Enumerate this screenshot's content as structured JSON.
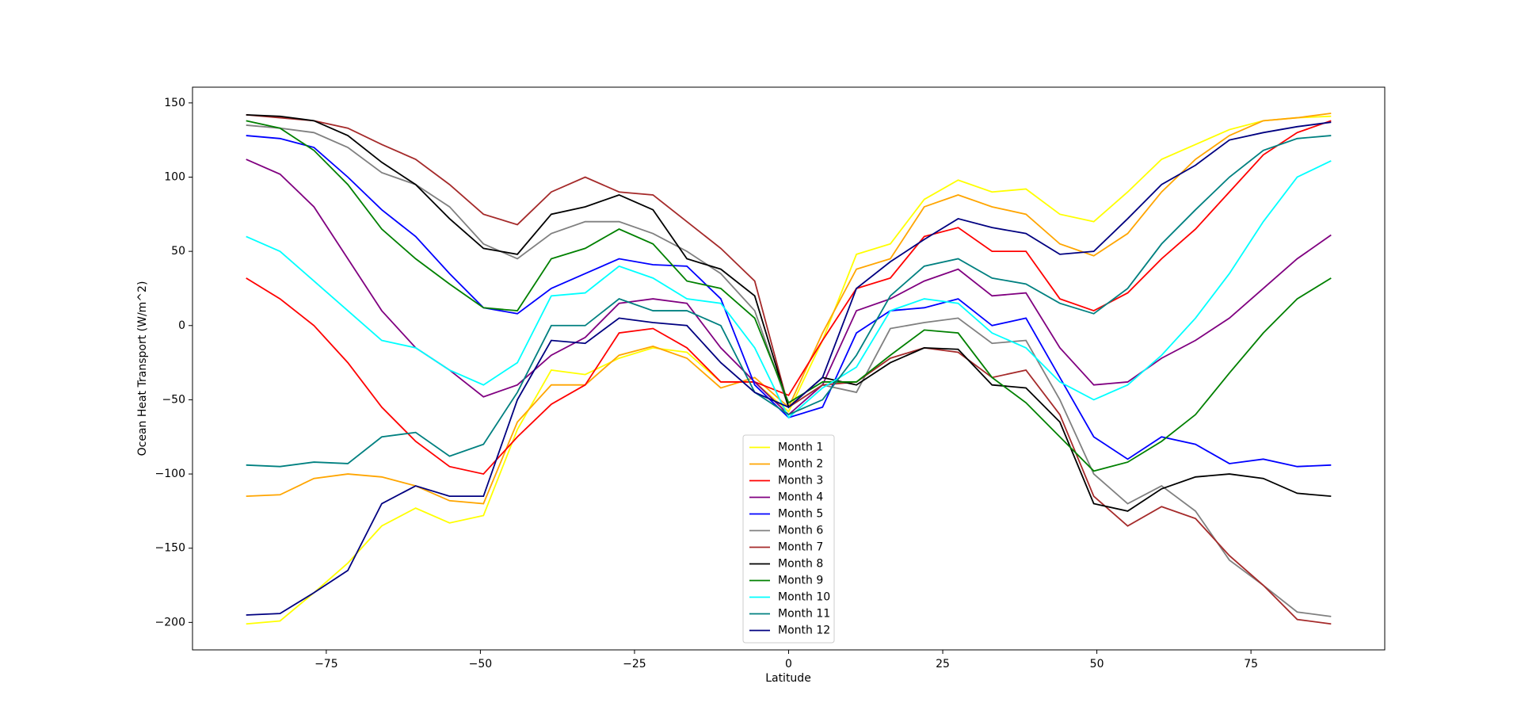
{
  "chart_data": {
    "type": "line",
    "xlabel": "Latitude",
    "ylabel": "Ocean Heat Transport (W/m^2)",
    "x": [
      -88,
      -82.5,
      -77,
      -71.5,
      -66,
      -60.5,
      -55,
      -49.5,
      -44,
      -38.5,
      -33,
      -27.5,
      -22,
      -16.5,
      -11,
      -5.5,
      0,
      5.5,
      11,
      16.5,
      22,
      27.5,
      33,
      38.5,
      44,
      49.5,
      55,
      60.5,
      66,
      71.5,
      77,
      82.5,
      88
    ],
    "xlim": [
      -96.7,
      96.7
    ],
    "xticks": [
      {
        "value": -75,
        "label": "−75"
      },
      {
        "value": -50,
        "label": "−50"
      },
      {
        "value": -25,
        "label": "−25"
      },
      0,
      25,
      50,
      75
    ],
    "ylim": [
      -218.5,
      160.6
    ],
    "yticks": [
      {
        "value": -200,
        "label": "−200"
      },
      {
        "value": -150,
        "label": "−150"
      },
      {
        "value": -100,
        "label": "−100"
      },
      {
        "value": -50,
        "label": "−50"
      },
      0,
      50,
      100,
      150
    ],
    "legend": "lower center",
    "series": [
      {
        "name": "Month 1",
        "color": "#ffff00",
        "values": [
          -201,
          -199,
          -180,
          -160,
          -135,
          -123,
          -133,
          -128,
          -70,
          -30,
          -33,
          -22,
          -15,
          -18,
          -38,
          -38,
          -58,
          -10,
          48,
          55,
          85,
          98,
          90,
          92,
          75,
          70,
          90,
          112,
          122,
          132,
          138,
          140,
          141
        ]
      },
      {
        "name": "Month 2",
        "color": "#ffa500",
        "values": [
          -115,
          -114,
          -103,
          -100,
          -102,
          -108,
          -118,
          -120,
          -65,
          -40,
          -40,
          -20,
          -14,
          -22,
          -42,
          -35,
          -55,
          -5,
          38,
          45,
          80,
          88,
          80,
          75,
          55,
          47,
          62,
          90,
          112,
          128,
          138,
          140,
          143
        ]
      },
      {
        "name": "Month 3",
        "color": "#ff0000",
        "values": [
          32,
          18,
          0,
          -25,
          -55,
          -78,
          -95,
          -100,
          -75,
          -53,
          -40,
          -5,
          -2,
          -15,
          -38,
          -38,
          -47,
          -10,
          25,
          32,
          60,
          66,
          50,
          50,
          18,
          10,
          22,
          45,
          65,
          90,
          115,
          130,
          138
        ]
      },
      {
        "name": "Month 4",
        "color": "#800080",
        "values": [
          112,
          102,
          80,
          45,
          10,
          -15,
          -30,
          -48,
          -40,
          -20,
          -8,
          15,
          18,
          15,
          -15,
          -38,
          -60,
          -40,
          10,
          18,
          30,
          38,
          20,
          22,
          -15,
          -40,
          -38,
          -22,
          -10,
          5,
          25,
          45,
          61
        ]
      },
      {
        "name": "Month 5",
        "color": "#0000ff",
        "values": [
          128,
          126,
          120,
          100,
          78,
          60,
          35,
          12,
          8,
          25,
          35,
          45,
          41,
          40,
          18,
          -40,
          -62,
          -55,
          -5,
          10,
          12,
          18,
          0,
          5,
          -35,
          -75,
          -90,
          -75,
          -80,
          -93,
          -90,
          -95,
          -94
        ]
      },
      {
        "name": "Month 6",
        "color": "#808080",
        "values": [
          135,
          133,
          130,
          120,
          103,
          95,
          80,
          55,
          45,
          62,
          70,
          70,
          62,
          50,
          35,
          10,
          -55,
          -40,
          -45,
          -2,
          2,
          5,
          -12,
          -10,
          -50,
          -100,
          -120,
          -108,
          -125,
          -158,
          -175,
          -193,
          -196
        ]
      },
      {
        "name": "Month 7",
        "color": "#a52a2a",
        "values": [
          142,
          140,
          138,
          133,
          122,
          112,
          95,
          75,
          68,
          90,
          100,
          90,
          88,
          70,
          52,
          30,
          -55,
          -40,
          -38,
          -22,
          -15,
          -18,
          -35,
          -30,
          -60,
          -115,
          -135,
          -122,
          -130,
          -155,
          -175,
          -198,
          -201
        ]
      },
      {
        "name": "Month 8",
        "color": "#000000",
        "values": [
          142,
          141,
          138,
          128,
          110,
          95,
          72,
          52,
          48,
          75,
          80,
          88,
          78,
          45,
          38,
          20,
          -55,
          -35,
          -40,
          -25,
          -15,
          -16,
          -40,
          -42,
          -65,
          -120,
          -125,
          -110,
          -102,
          -100,
          -103,
          -113,
          -115
        ]
      },
      {
        "name": "Month 9",
        "color": "#008000",
        "values": [
          138,
          133,
          118,
          95,
          65,
          45,
          28,
          12,
          10,
          45,
          52,
          65,
          55,
          30,
          25,
          5,
          -52,
          -38,
          -38,
          -20,
          -3,
          -5,
          -35,
          -52,
          -75,
          -98,
          -92,
          -78,
          -60,
          -32,
          -5,
          18,
          32
        ]
      },
      {
        "name": "Month 10",
        "color": "#00ffff",
        "values": [
          60,
          50,
          30,
          10,
          -10,
          -15,
          -30,
          -40,
          -25,
          20,
          22,
          40,
          32,
          18,
          15,
          -15,
          -62,
          -42,
          -28,
          10,
          18,
          15,
          -5,
          -15,
          -38,
          -50,
          -40,
          -20,
          5,
          35,
          70,
          100,
          111
        ]
      },
      {
        "name": "Month 11",
        "color": "#008080",
        "values": [
          -94,
          -95,
          -92,
          -93,
          -75,
          -72,
          -88,
          -80,
          -45,
          0,
          0,
          18,
          10,
          10,
          0,
          -45,
          -60,
          -50,
          -20,
          20,
          40,
          45,
          32,
          28,
          15,
          8,
          25,
          55,
          78,
          100,
          118,
          126,
          128
        ]
      },
      {
        "name": "Month 12",
        "color": "#000080",
        "values": [
          -195,
          -194,
          -180,
          -165,
          -120,
          -108,
          -115,
          -115,
          -50,
          -10,
          -12,
          5,
          2,
          0,
          -25,
          -45,
          -55,
          -35,
          25,
          43,
          58,
          72,
          66,
          62,
          48,
          50,
          72,
          95,
          108,
          125,
          130,
          134,
          137
        ]
      }
    ]
  }
}
